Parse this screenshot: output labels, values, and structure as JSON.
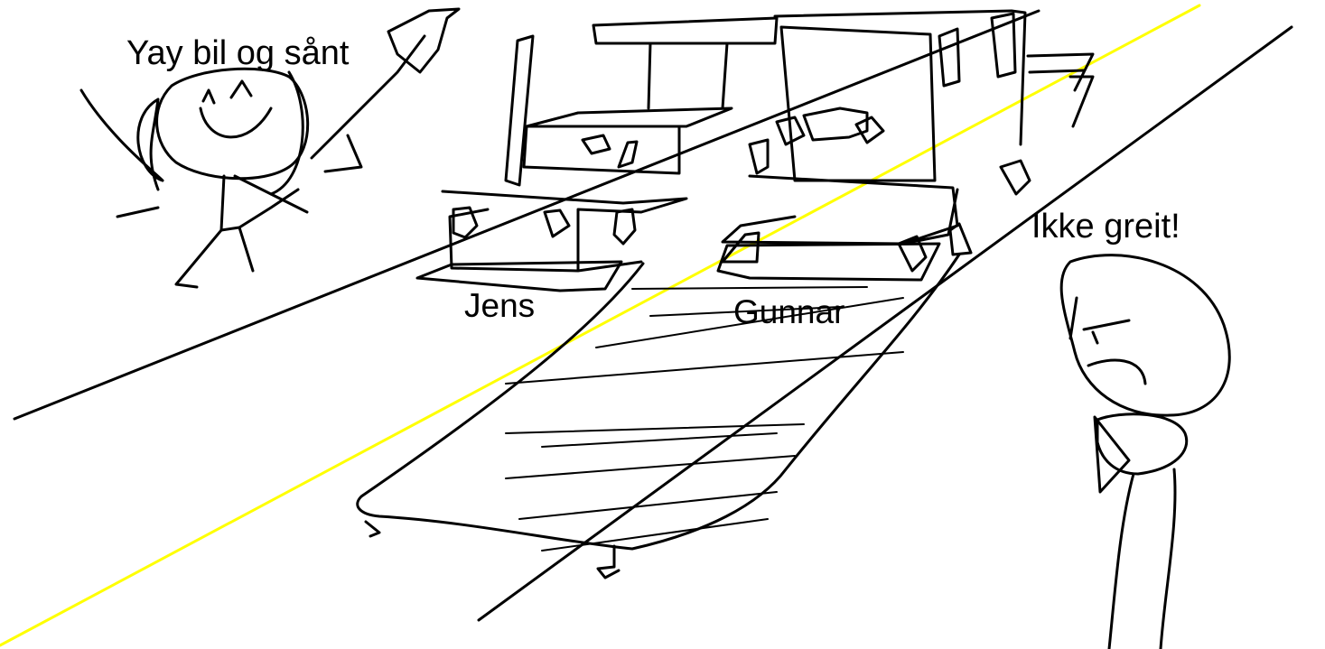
{
  "drawing": {
    "ink_color": "#000000",
    "center_line_color": "#ffff00",
    "background_color": "#ffffff",
    "labels": {
      "happy_person_speech": "Yay bil og sånt",
      "left_vehicle_name": "Jens",
      "right_vehicle_name": "Gunnar",
      "angry_person_speech": "Ikke greit!"
    }
  }
}
